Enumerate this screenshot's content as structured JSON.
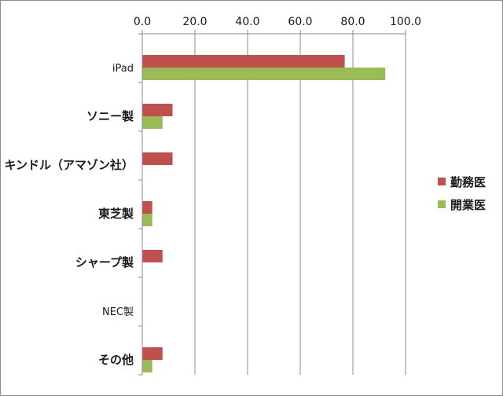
{
  "chart_data": {
    "type": "bar",
    "orientation": "horizontal",
    "categories": [
      "iPad",
      "ソニー製",
      "キンドル（アマゾン社）",
      "東芝製",
      "シャープ製",
      "NEC製",
      "その他"
    ],
    "series": [
      {
        "name": "勤務医",
        "color": "#c0504d",
        "values": [
          76.9,
          11.5,
          11.5,
          3.8,
          7.7,
          0.0,
          7.7
        ]
      },
      {
        "name": "開業医",
        "color": "#9bbb59",
        "values": [
          92.3,
          7.7,
          0.0,
          3.8,
          0.0,
          0.0,
          3.8
        ]
      }
    ],
    "xlim": [
      0,
      100
    ],
    "xticks": [
      "0.0",
      "20.0",
      "40.0",
      "60.0",
      "80.0",
      "100.0"
    ],
    "tick_values": [
      0,
      20,
      40,
      60,
      80,
      100
    ],
    "grid": true,
    "legend": "right",
    "title": "",
    "xlabel": "",
    "ylabel": ""
  }
}
